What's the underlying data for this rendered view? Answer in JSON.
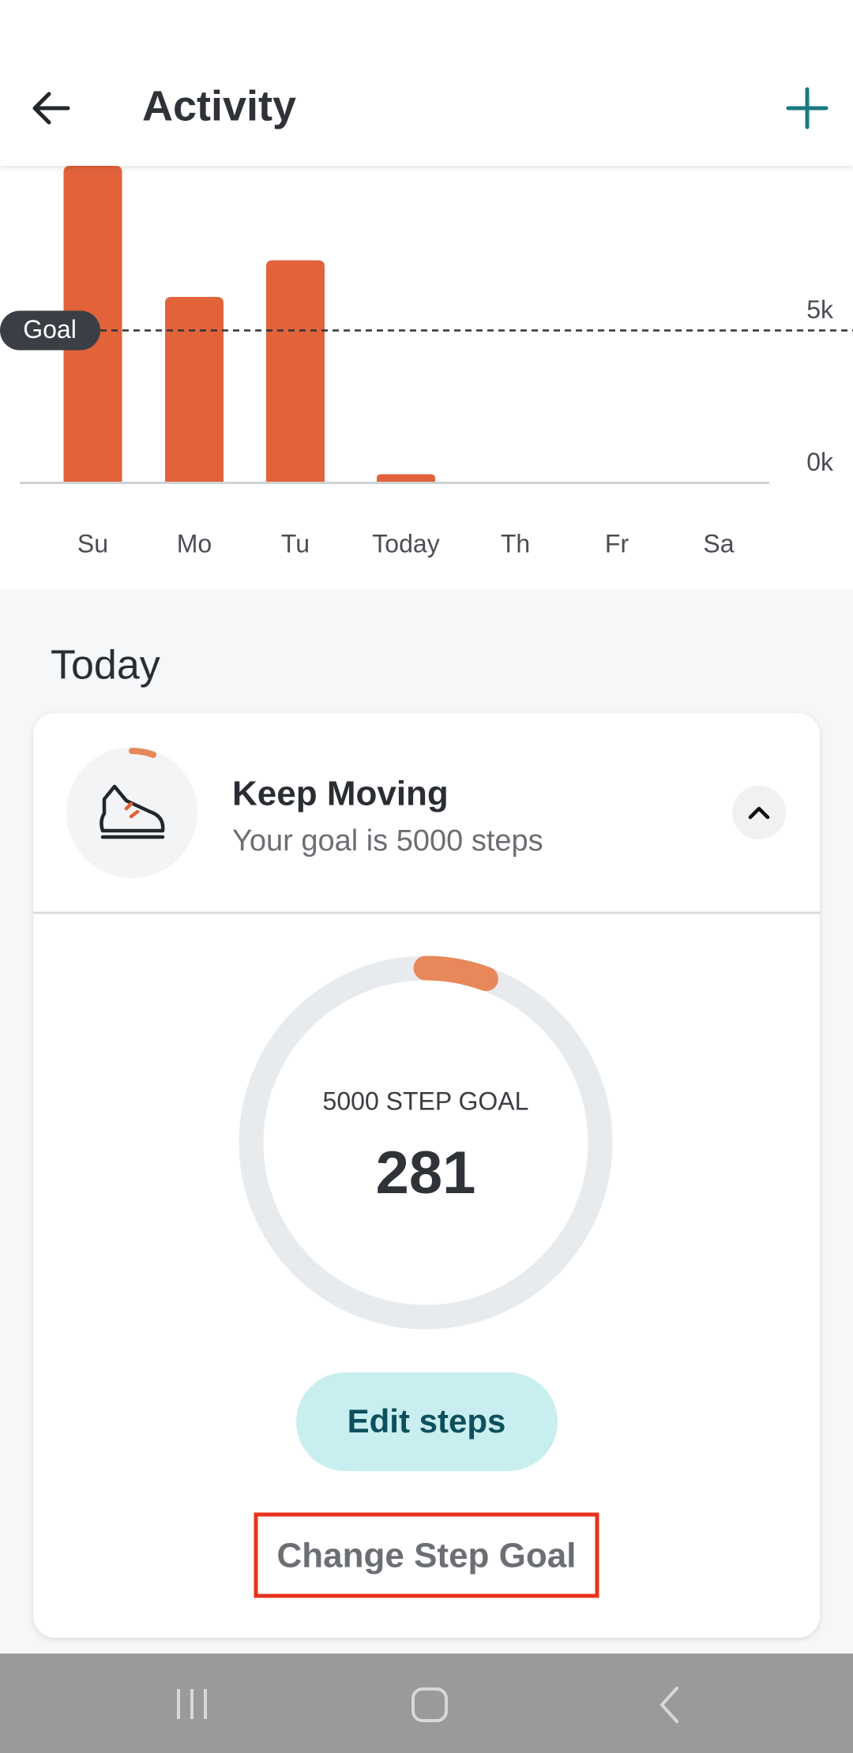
{
  "header": {
    "title": "Activity"
  },
  "chart_data": {
    "type": "bar",
    "categories": [
      "Su",
      "Mo",
      "Tu",
      "Today",
      "Th",
      "Fr",
      "Sa"
    ],
    "values": [
      10400,
      6100,
      7300,
      281,
      null,
      null,
      null
    ],
    "color": "#e2623a",
    "ylim": [
      0,
      10400
    ],
    "yticks": [
      {
        "value": 0,
        "label": "0k"
      },
      {
        "value": 5000,
        "label": "5k"
      }
    ],
    "goal_line": {
      "label": "Goal",
      "value": 5000
    }
  },
  "section_title": "Today",
  "goal_card": {
    "title": "Keep Moving",
    "subtitle": "Your goal is 5000 steps",
    "goal_label": "5000 STEP GOAL",
    "steps": 281,
    "goal": 5000,
    "edit_button": "Edit steps",
    "change_goal_button": "Change Step Goal"
  }
}
